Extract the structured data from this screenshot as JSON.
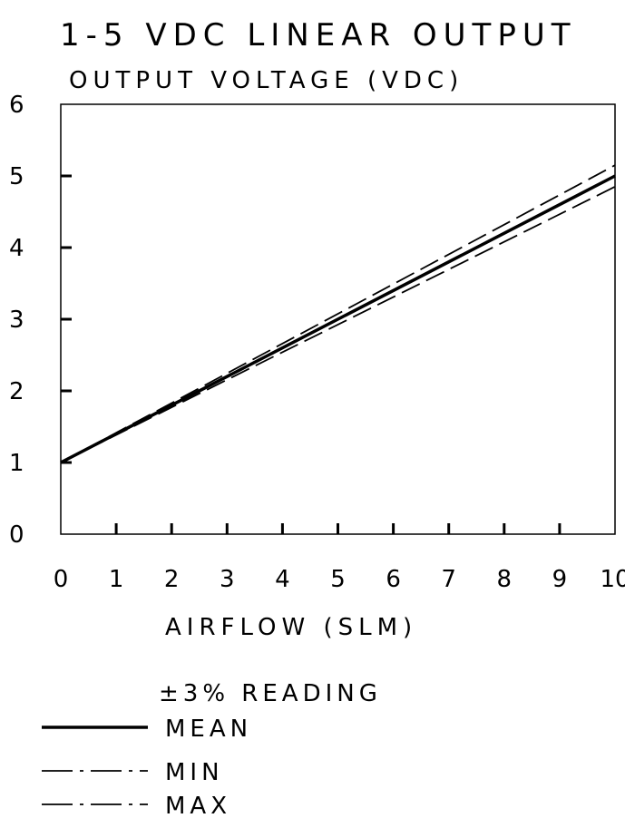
{
  "chart_data": {
    "type": "line",
    "title": "1-5 VDC LINEAR OUTPUT",
    "ylabel": "OUTPUT VOLTAGE (VDC)",
    "xlabel": "AIRFLOW (SLM)",
    "xlim": [
      0,
      10
    ],
    "ylim": [
      0,
      6
    ],
    "grid": false,
    "x_ticks": [
      "0",
      "1",
      "2",
      "3",
      "4",
      "5",
      "6",
      "7",
      "8",
      "9",
      "10"
    ],
    "y_ticks": [
      "0",
      "1",
      "2",
      "3",
      "4",
      "5",
      "6"
    ],
    "legend_title": "±3% READING",
    "legend_position": "bottom-left",
    "series": [
      {
        "name": "MEAN",
        "style": "solid",
        "x": [
          0,
          10
        ],
        "y": [
          1.0,
          5.0
        ]
      },
      {
        "name": "MIN",
        "style": "dashed",
        "x": [
          0,
          10
        ],
        "y": [
          1.0,
          4.85
        ]
      },
      {
        "name": "MAX",
        "style": "dashed",
        "x": [
          0,
          10
        ],
        "y": [
          1.0,
          5.15
        ]
      }
    ]
  }
}
